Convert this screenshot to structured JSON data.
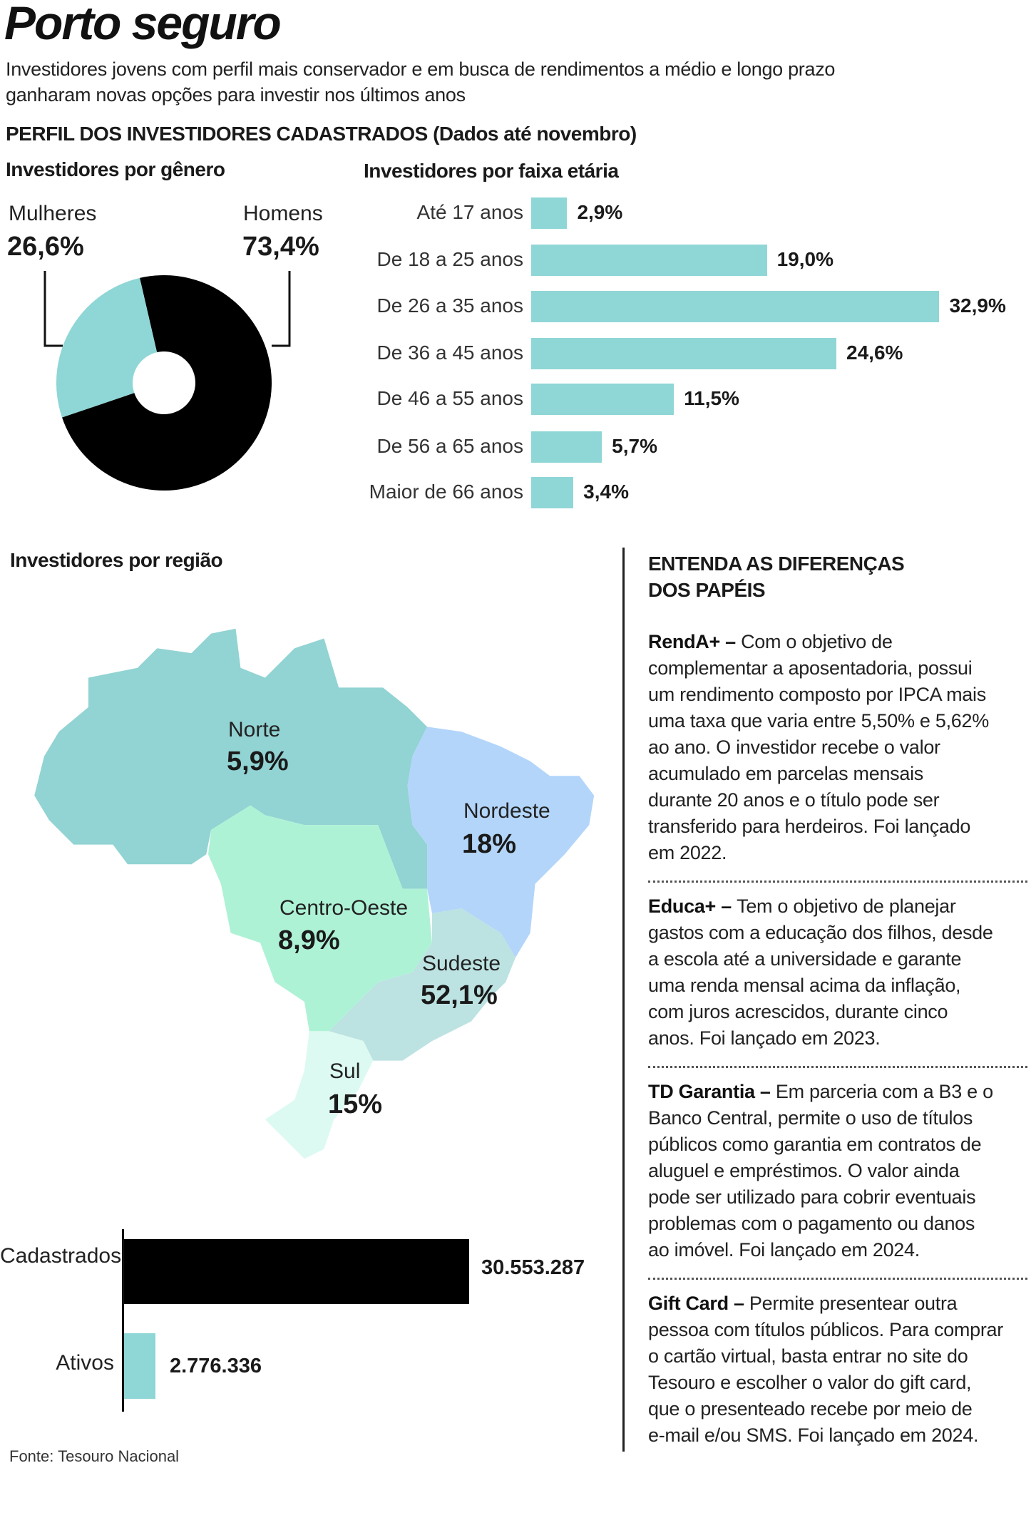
{
  "header": {
    "title": "Porto seguro",
    "subtitle_lines": [
      "Investidores jovens com perfil mais conservador e em busca de rendimentos a médio e longo prazo",
      "ganharam novas opções para investir nos últimos anos"
    ],
    "section_title": "PERFIL DOS INVESTIDORES CADASTRADOS (Dados até novembro)"
  },
  "chart_data": [
    {
      "type": "pie",
      "title": "Investidores por gênero",
      "categories": [
        "Mulheres",
        "Homens"
      ],
      "values": [
        26.6,
        73.4
      ],
      "value_labels": [
        "26,6%",
        "73,4%"
      ],
      "colors": [
        "#8fd6d6",
        "#000000"
      ]
    },
    {
      "type": "bar",
      "title": "Investidores por faixa etária",
      "categories": [
        "Até 17 anos",
        "De 18 a 25 anos",
        "De 26 a 35 anos",
        "De 36 a 45 anos",
        "De 46 a 55 anos",
        "De 56 a 65 anos",
        "Maior de 66 anos"
      ],
      "values": [
        2.9,
        19.0,
        32.9,
        24.6,
        11.5,
        5.7,
        3.4
      ],
      "value_labels": [
        "2,9%",
        "19,0%",
        "32,9%",
        "24,6%",
        "11,5%",
        "5,7%",
        "3,4%"
      ],
      "color": "#8fd6d6"
    },
    {
      "type": "map",
      "title": "Investidores por região",
      "regions": [
        {
          "name": "Norte",
          "value": 5.9,
          "label": "5,9%",
          "color": "#92d3d3"
        },
        {
          "name": "Nordeste",
          "value": 18,
          "label": "18%",
          "color": "#b3d5fa"
        },
        {
          "name": "Centro-Oeste",
          "value": 8.9,
          "label": "8,9%",
          "color": "#aef2d6"
        },
        {
          "name": "Sudeste",
          "value": 52.1,
          "label": "52,1%",
          "color": "#bde2e2"
        },
        {
          "name": "Sul",
          "value": 15,
          "label": "15%",
          "color": "#dcfaf2"
        }
      ]
    },
    {
      "type": "bar",
      "categories": [
        "Cadastrados",
        "Ativos"
      ],
      "values": [
        30553287,
        2776336
      ],
      "value_labels": [
        "30.553.287",
        "2.776.336"
      ],
      "colors": [
        "#000000",
        "#8fd6d6"
      ]
    }
  ],
  "source": "Fonte: Tesouro Nacional",
  "sidebar": {
    "heading_lines": [
      "ENTENDA AS DIFERENÇAS",
      "DOS PAPÉIS"
    ],
    "items": [
      {
        "title": "RendA+ –",
        "lines": [
          "Com o objetivo de",
          "complementar a aposentadoria, possui",
          "um rendimento composto por IPCA mais",
          "uma taxa que varia entre 5,50% e 5,62%",
          "ao ano. O  investidor recebe o valor",
          "acumulado em parcelas mensais",
          "durante 20 anos e o título pode ser",
          "transferido para herdeiros. Foi lançado",
          "em 2022."
        ]
      },
      {
        "title": "Educa+ –",
        "lines": [
          "Tem o objetivo de planejar",
          "gastos com a educação dos filhos, desde",
          "a escola até a universidade e garante",
          "uma renda mensal acima da inflação,",
          "com juros acrescidos, durante cinco",
          "anos. Foi lançado em 2023."
        ]
      },
      {
        "title": "TD Garantia –",
        "lines": [
          "Em parceria com a B3 e o",
          "Banco Central, permite o uso de títulos",
          "públicos como garantia em contratos de",
          "aluguel e empréstimos. O valor ainda",
          "pode ser utilizado para cobrir eventuais",
          "problemas com o pagamento ou danos",
          "ao imóvel. Foi lançado em 2024."
        ]
      },
      {
        "title": "Gift Card –",
        "lines": [
          "Permite presentear outra",
          "pessoa com títulos públicos. Para comprar",
          "o cartão virtual, basta entrar no site do",
          "Tesouro e escolher o valor do gift card,",
          "que o presenteado recebe por meio de",
          "e-mail e/ou SMS. Foi lançado em 2024."
        ]
      }
    ]
  }
}
